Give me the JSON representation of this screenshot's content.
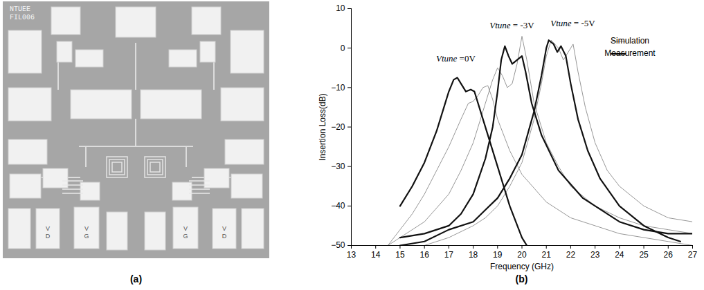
{
  "photo": {
    "caption": "(a)",
    "marking": [
      "NTUEE",
      "FIL006"
    ],
    "pad_labels": [
      "V D",
      "V G",
      "V G",
      "V D"
    ]
  },
  "chart_data": {
    "type": "line",
    "caption": "(b)",
    "x_label": "Frequency (GHz)",
    "y_label": "Insertion Loss(dB)",
    "xlim": [
      13,
      27
    ],
    "xticks": [
      13,
      14,
      15,
      16,
      17,
      18,
      19,
      20,
      21,
      22,
      23,
      24,
      25,
      26,
      27
    ],
    "ylim": [
      -50,
      10
    ],
    "yticks": [
      -50,
      -40,
      -30,
      -20,
      -10,
      0,
      10
    ],
    "grid": false,
    "legend": "top-right",
    "series": [
      {
        "name": "Simulation",
        "color": "#8a8a8a",
        "line_style": "thin",
        "curves": [
          {
            "x": [
              14.5,
              15,
              15.5,
              16,
              16.5,
              17,
              17.5,
              17.8,
              18.0,
              18.2,
              18.4,
              18.6,
              18.8,
              19.0,
              19.5,
              20,
              21,
              22,
              23,
              24,
              25,
              26,
              27
            ],
            "values": [
              -50,
              -46,
              -42,
              -37,
              -31,
              -25,
              -18,
              -14,
              -13.5,
              -12,
              -10,
              -9.5,
              -13,
              -18,
              -26,
              -32,
              -39,
              -43,
              -45,
              -47,
              -48,
              -49,
              -50
            ]
          },
          {
            "x": [
              14.5,
              15,
              16,
              17,
              17.5,
              18,
              18.5,
              18.8,
              19.0,
              19.2,
              19.4,
              19.6,
              19.8,
              20.0,
              20.2,
              20.5,
              21,
              21.5,
              22,
              23,
              24,
              25,
              26,
              27
            ],
            "values": [
              -50,
              -48,
              -44,
              -37,
              -31,
              -24,
              -14,
              -8,
              -5,
              -7,
              -10,
              -9,
              -4,
              3,
              -3,
              -14,
              -24,
              -30,
              -35,
              -40,
              -43,
              -45,
              -46,
              -47
            ]
          },
          {
            "x": [
              16,
              17,
              18,
              18.5,
              19,
              19.5,
              20,
              20.5,
              20.8,
              21.0,
              21.2,
              21.5,
              21.7,
              21.9,
              22.1,
              22.3,
              22.6,
              23,
              23.5,
              24,
              25,
              26,
              27
            ],
            "values": [
              -50,
              -48,
              -45,
              -43,
              -40,
              -35,
              -29,
              -18,
              -9,
              -2,
              2,
              0,
              -3,
              -1,
              1,
              -6,
              -15,
              -24,
              -31,
              -35,
              -40,
              -43,
              -44
            ]
          }
        ]
      },
      {
        "name": "Measurement",
        "color": "#111111",
        "line_style": "thick",
        "curves": [
          {
            "x": [
              15,
              15.5,
              16,
              16.5,
              16.8,
              17.0,
              17.2,
              17.35,
              17.5,
              17.7,
              17.9,
              18.05,
              18.3,
              18.6,
              19.0,
              19.5,
              20.0,
              20.2
            ],
            "values": [
              -40,
              -35,
              -29,
              -21,
              -15,
              -11,
              -8,
              -7.5,
              -9,
              -11,
              -10.5,
              -11,
              -16,
              -22,
              -30,
              -40,
              -48,
              -50
            ]
          },
          {
            "x": [
              15,
              16,
              17,
              17.5,
              18,
              18.5,
              18.8,
              19.0,
              19.15,
              19.3,
              19.45,
              19.6,
              19.8,
              20.0,
              20.15,
              20.4,
              20.8,
              21.5,
              22.5,
              24,
              25,
              26,
              27
            ],
            "values": [
              -48,
              -47,
              -45,
              -42,
              -37,
              -28,
              -20,
              -11,
              -3,
              0.5,
              -2,
              -4,
              -3,
              -2,
              -6,
              -14,
              -22,
              -31,
              -38,
              -44,
              -46,
              -47,
              -47
            ]
          },
          {
            "x": [
              15,
              16,
              17,
              18,
              18.5,
              19,
              19.5,
              20,
              20.5,
              20.8,
              21.0,
              21.1,
              21.3,
              21.45,
              21.6,
              21.8,
              22.0,
              22.3,
              22.7,
              23.2,
              24,
              25,
              26,
              26.5
            ],
            "values": [
              -50,
              -49,
              -46,
              -44,
              -41,
              -38,
              -33,
              -27,
              -16,
              -7,
              0,
              2,
              1,
              -1,
              0.5,
              -2,
              -9,
              -18,
              -26,
              -33,
              -40,
              -45,
              -48,
              -49
            ]
          }
        ]
      }
    ],
    "annotations": [
      {
        "text": "Vtune =0V",
        "x": 17.3,
        "y": -3
      },
      {
        "text": "Vtune = -3V",
        "x": 19.6,
        "y": 5.5
      },
      {
        "text": "Vtune = -5V",
        "x": 22.1,
        "y": 6
      }
    ]
  }
}
